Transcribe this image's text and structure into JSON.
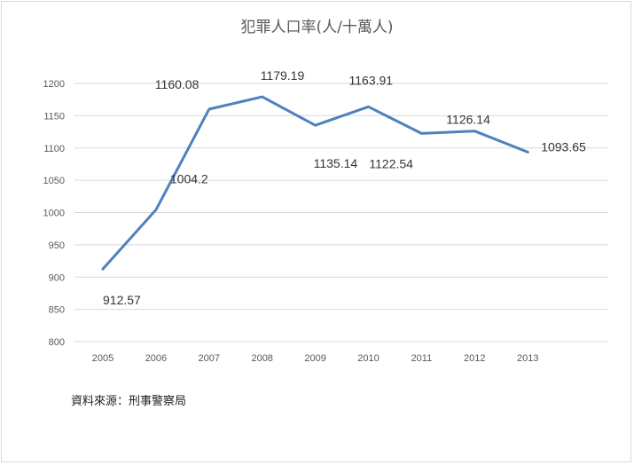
{
  "chart_data": {
    "type": "line",
    "title": "犯罪人口率(人/十萬人)",
    "categories": [
      "2005",
      "2006",
      "2007",
      "2008",
      "2009",
      "2010",
      "2011",
      "2012",
      "2013"
    ],
    "series": [
      {
        "values": [
          912.57,
          1004.2,
          1160.08,
          1179.19,
          1135.14,
          1163.91,
          1122.54,
          1126.14,
          1093.65
        ],
        "labels": [
          "912.57",
          "1004.2",
          "1160.08",
          "1179.19",
          "1135.14",
          "1163.91",
          "1122.54",
          "1126.14",
          "1093.65"
        ],
        "color": "#4f81bd"
      }
    ],
    "ylim": [
      800,
      1200
    ],
    "yticks": [
      800,
      850,
      900,
      950,
      1000,
      1050,
      1100,
      1150,
      1200
    ],
    "grid": true,
    "legend": "none"
  },
  "source_note": "資料來源：刑事警察局",
  "colors": {
    "grid": "#d9d9d9",
    "line": "#4f81bd"
  }
}
